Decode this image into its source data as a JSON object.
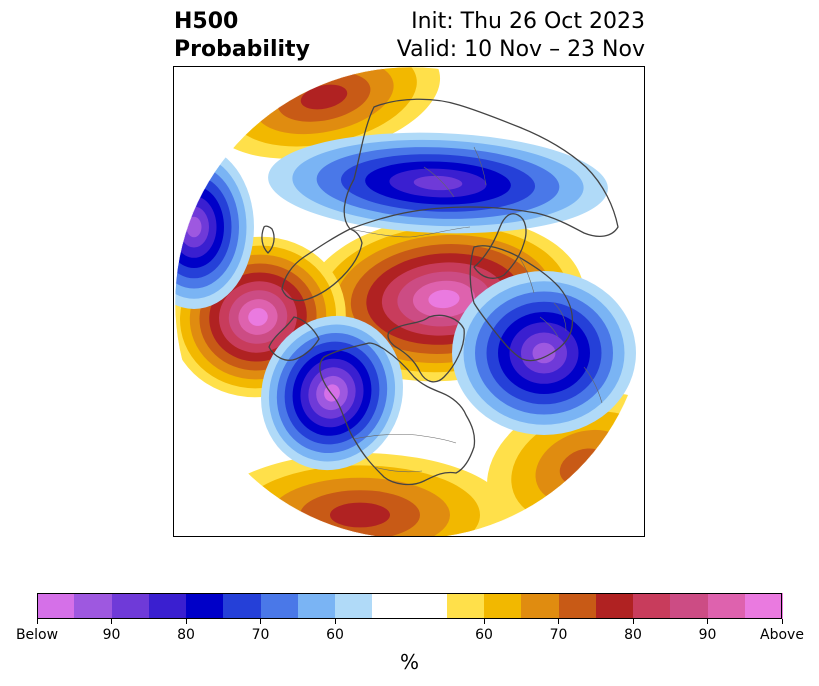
{
  "header": {
    "title_line1": "H500",
    "title_line2": "Probability",
    "init_text": "Init: Thu 26 Oct 2023",
    "valid_text": "Valid: 10 Nov – 23 Nov"
  },
  "colorbar": {
    "unit": "%",
    "colors": [
      "#d570e8",
      "#9e58e0",
      "#6f3ad8",
      "#3a1fd0",
      "#0000c8",
      "#2540d8",
      "#4a78e8",
      "#7ab4f4",
      "#b0daf8",
      "#ffffff",
      "#ffffff",
      "#ffe04a",
      "#f2b800",
      "#e08c10",
      "#c85a16",
      "#b02222",
      "#c83c5c",
      "#cc4c84",
      "#de62ae",
      "#ea7ae0"
    ],
    "tick_labels": [
      {
        "text": "Below",
        "index": 0
      },
      {
        "text": "90",
        "index": 2
      },
      {
        "text": "80",
        "index": 4
      },
      {
        "text": "70",
        "index": 6
      },
      {
        "text": "60",
        "index": 8
      },
      {
        "text": "60",
        "index": 12
      },
      {
        "text": "70",
        "index": 14
      },
      {
        "text": "80",
        "index": 16
      },
      {
        "text": "90",
        "index": 18
      },
      {
        "text": "Above",
        "index": 20
      }
    ]
  },
  "map": {
    "anomalies": [
      {
        "name": "north-pacific-low",
        "sign": "below",
        "strength": 1.0
      },
      {
        "name": "hudson-bay-low",
        "sign": "below",
        "strength": 0.75
      },
      {
        "name": "arctic-siberia-low",
        "sign": "below",
        "strength": 0.9
      },
      {
        "name": "west-atlantic-low",
        "sign": "below",
        "strength": 0.85
      },
      {
        "name": "gulf-of-alaska-high",
        "sign": "above",
        "strength": 1.0
      },
      {
        "name": "polar-high",
        "sign": "above",
        "strength": 0.95
      },
      {
        "name": "scandinavia-high",
        "sign": "above",
        "strength": 0.6
      },
      {
        "name": "southern-us-high",
        "sign": "above",
        "strength": 0.55
      },
      {
        "name": "north-africa-high",
        "sign": "above",
        "strength": 0.45
      }
    ]
  }
}
